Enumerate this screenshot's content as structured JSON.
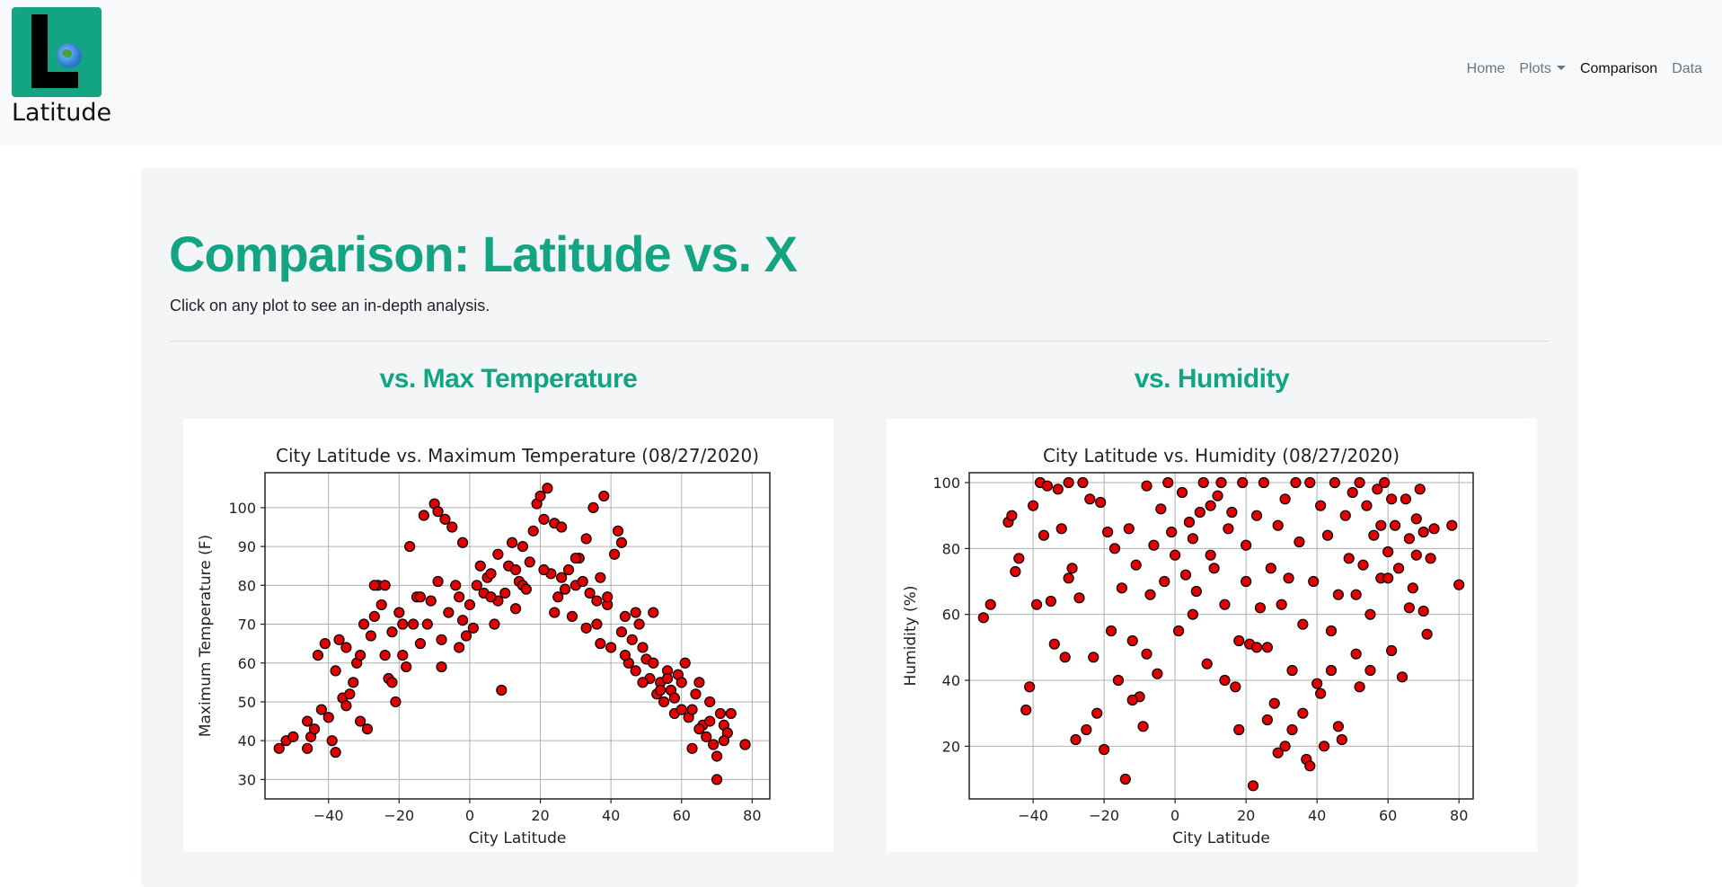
{
  "brand": {
    "name": "Latitude",
    "logo_icon": "globe-icon"
  },
  "nav": {
    "items": [
      {
        "label": "Home",
        "active": false,
        "dropdown": false
      },
      {
        "label": "Plots",
        "active": false,
        "dropdown": true
      },
      {
        "label": "Comparison",
        "active": true,
        "dropdown": false
      },
      {
        "label": "Data",
        "active": false,
        "dropdown": false
      }
    ]
  },
  "page": {
    "title": "Comparison: Latitude vs. X",
    "subtitle": "Click on any plot to see an in-depth analysis."
  },
  "colors": {
    "accent": "#13a583",
    "marker_fill": "#e00000",
    "marker_edge": "#000000",
    "grid": "#b0b0b0"
  },
  "plots": [
    {
      "heading": "vs. Max Temperature"
    },
    {
      "heading": "vs. Humidity"
    }
  ],
  "chart_data": [
    {
      "type": "scatter",
      "title": "City Latitude vs. Maximum Temperature (08/27/2020)",
      "xlabel": "City Latitude",
      "ylabel": "Maximum Temperature (F)",
      "xlim": [
        -58,
        85
      ],
      "ylim": [
        25,
        109
      ],
      "xticks": [
        -40,
        -20,
        0,
        20,
        40,
        60,
        80
      ],
      "yticks": [
        30,
        40,
        50,
        60,
        70,
        80,
        90,
        100
      ],
      "grid": true,
      "points": [
        [
          -54,
          38
        ],
        [
          -52,
          40
        ],
        [
          -50,
          41
        ],
        [
          -46,
          45
        ],
        [
          -45,
          41
        ],
        [
          -46,
          38
        ],
        [
          -43,
          62
        ],
        [
          -42,
          48
        ],
        [
          -41,
          65
        ],
        [
          -40,
          46
        ],
        [
          -38,
          58
        ],
        [
          -38,
          37
        ],
        [
          -37,
          66
        ],
        [
          -36,
          51
        ],
        [
          -35,
          49
        ],
        [
          -34,
          52
        ],
        [
          -33,
          55
        ],
        [
          -32,
          60
        ],
        [
          -31,
          45
        ],
        [
          -30,
          70
        ],
        [
          -29,
          43
        ],
        [
          -28,
          67
        ],
        [
          -27,
          72
        ],
        [
          -26,
          80
        ],
        [
          -25,
          75
        ],
        [
          -24,
          62
        ],
        [
          -23,
          56
        ],
        [
          -22,
          68
        ],
        [
          -21,
          50
        ],
        [
          -20,
          73
        ],
        [
          -19,
          62
        ],
        [
          -18,
          59
        ],
        [
          -17,
          90
        ],
        [
          -16,
          70
        ],
        [
          -15,
          77
        ],
        [
          -14,
          65
        ],
        [
          -13,
          98
        ],
        [
          -12,
          70
        ],
        [
          -11,
          76
        ],
        [
          -10,
          101
        ],
        [
          -9,
          99
        ],
        [
          -8,
          59
        ],
        [
          -7,
          97
        ],
        [
          -6,
          73
        ],
        [
          -5,
          95
        ],
        [
          -4,
          80
        ],
        [
          -3,
          77
        ],
        [
          -2,
          91
        ],
        [
          -1,
          67
        ],
        [
          0,
          75
        ],
        [
          1,
          69
        ],
        [
          2,
          80
        ],
        [
          3,
          85
        ],
        [
          4,
          78
        ],
        [
          5,
          82
        ],
        [
          6,
          83
        ],
        [
          7,
          70
        ],
        [
          8,
          76
        ],
        [
          9,
          53
        ],
        [
          10,
          78
        ],
        [
          11,
          85
        ],
        [
          12,
          91
        ],
        [
          13,
          84
        ],
        [
          14,
          81
        ],
        [
          15,
          80
        ],
        [
          16,
          79
        ],
        [
          17,
          86
        ],
        [
          18,
          94
        ],
        [
          19,
          101
        ],
        [
          20,
          103
        ],
        [
          21,
          97
        ],
        [
          22,
          105
        ],
        [
          23,
          83
        ],
        [
          24,
          96
        ],
        [
          25,
          77
        ],
        [
          26,
          82
        ],
        [
          27,
          79
        ],
        [
          28,
          84
        ],
        [
          29,
          72
        ],
        [
          30,
          80
        ],
        [
          31,
          87
        ],
        [
          32,
          81
        ],
        [
          33,
          92
        ],
        [
          34,
          78
        ],
        [
          35,
          100
        ],
        [
          36,
          70
        ],
        [
          37,
          82
        ],
        [
          38,
          103
        ],
        [
          39,
          75
        ],
        [
          40,
          64
        ],
        [
          41,
          88
        ],
        [
          42,
          94
        ],
        [
          43,
          68
        ],
        [
          44,
          72
        ],
        [
          45,
          60
        ],
        [
          46,
          66
        ],
        [
          47,
          58
        ],
        [
          48,
          70
        ],
        [
          49,
          64
        ],
        [
          50,
          61
        ],
        [
          51,
          56
        ],
        [
          52,
          73
        ],
        [
          53,
          52
        ],
        [
          54,
          55
        ],
        [
          55,
          50
        ],
        [
          56,
          58
        ],
        [
          57,
          53
        ],
        [
          58,
          47
        ],
        [
          59,
          57
        ],
        [
          60,
          48
        ],
        [
          61,
          60
        ],
        [
          62,
          46
        ],
        [
          63,
          38
        ],
        [
          64,
          52
        ],
        [
          65,
          55
        ],
        [
          66,
          44
        ],
        [
          67,
          41
        ],
        [
          68,
          50
        ],
        [
          69,
          39
        ],
        [
          70,
          36
        ],
        [
          71,
          47
        ],
        [
          72,
          44
        ],
        [
          73,
          42
        ],
        [
          74,
          47
        ],
        [
          -39,
          40
        ],
        [
          -44,
          43
        ],
        [
          -27,
          80
        ],
        [
          -24,
          80
        ],
        [
          -19,
          70
        ],
        [
          -8,
          66
        ],
        [
          -3,
          64
        ],
        [
          6,
          77
        ],
        [
          13,
          74
        ],
        [
          21,
          84
        ],
        [
          24,
          73
        ],
        [
          33,
          69
        ],
        [
          37,
          65
        ],
        [
          44,
          62
        ],
        [
          49,
          55
        ],
        [
          54,
          53
        ],
        [
          58,
          51
        ],
        [
          63,
          48
        ],
        [
          68,
          45
        ],
        [
          70,
          30
        ],
        [
          78,
          39
        ],
        [
          -35,
          64
        ],
        [
          -31,
          62
        ],
        [
          -22,
          55
        ],
        [
          -14,
          77
        ],
        [
          -9,
          81
        ],
        [
          -2,
          71
        ],
        [
          8,
          88
        ],
        [
          15,
          90
        ],
        [
          26,
          95
        ],
        [
          30,
          87
        ],
        [
          36,
          76
        ],
        [
          39,
          77
        ],
        [
          43,
          91
        ],
        [
          47,
          73
        ],
        [
          52,
          60
        ],
        [
          56,
          56
        ],
        [
          60,
          55
        ],
        [
          65,
          43
        ],
        [
          72,
          40
        ],
        [
          78,
          39
        ]
      ]
    },
    {
      "type": "scatter",
      "title": "City Latitude vs. Humidity (08/27/2020)",
      "xlabel": "City Latitude",
      "ylabel": "Humidity (%)",
      "xlim": [
        -58,
        84
      ],
      "ylim": [
        4,
        103
      ],
      "xticks": [
        -40,
        -20,
        0,
        20,
        40,
        60,
        80
      ],
      "yticks": [
        20,
        40,
        60,
        80,
        100
      ],
      "grid": true,
      "points": [
        [
          -54,
          59
        ],
        [
          -52,
          63
        ],
        [
          -47,
          88
        ],
        [
          -46,
          90
        ],
        [
          -44,
          77
        ],
        [
          -42,
          31
        ],
        [
          -41,
          38
        ],
        [
          -40,
          93
        ],
        [
          -39,
          63
        ],
        [
          -38,
          100
        ],
        [
          -37,
          84
        ],
        [
          -36,
          99
        ],
        [
          -35,
          64
        ],
        [
          -34,
          51
        ],
        [
          -33,
          98
        ],
        [
          -32,
          86
        ],
        [
          -31,
          47
        ],
        [
          -30,
          100
        ],
        [
          -29,
          74
        ],
        [
          -28,
          22
        ],
        [
          -27,
          65
        ],
        [
          -26,
          100
        ],
        [
          -25,
          25
        ],
        [
          -24,
          95
        ],
        [
          -23,
          47
        ],
        [
          -22,
          30
        ],
        [
          -21,
          94
        ],
        [
          -20,
          19
        ],
        [
          -19,
          85
        ],
        [
          -18,
          55
        ],
        [
          -17,
          80
        ],
        [
          -16,
          40
        ],
        [
          -15,
          68
        ],
        [
          -14,
          10
        ],
        [
          -13,
          86
        ],
        [
          -12,
          52
        ],
        [
          -11,
          75
        ],
        [
          -10,
          35
        ],
        [
          -9,
          26
        ],
        [
          -8,
          99
        ],
        [
          -7,
          66
        ],
        [
          -6,
          81
        ],
        [
          -5,
          42
        ],
        [
          -4,
          92
        ],
        [
          -3,
          70
        ],
        [
          -2,
          100
        ],
        [
          -1,
          85
        ],
        [
          0,
          78
        ],
        [
          1,
          55
        ],
        [
          2,
          97
        ],
        [
          3,
          72
        ],
        [
          4,
          88
        ],
        [
          5,
          83
        ],
        [
          6,
          67
        ],
        [
          7,
          91
        ],
        [
          8,
          100
        ],
        [
          9,
          45
        ],
        [
          10,
          78
        ],
        [
          11,
          74
        ],
        [
          12,
          96
        ],
        [
          13,
          100
        ],
        [
          14,
          63
        ],
        [
          15,
          86
        ],
        [
          16,
          91
        ],
        [
          17,
          38
        ],
        [
          18,
          25
        ],
        [
          19,
          100
        ],
        [
          20,
          81
        ],
        [
          21,
          51
        ],
        [
          22,
          8
        ],
        [
          23,
          90
        ],
        [
          24,
          62
        ],
        [
          25,
          100
        ],
        [
          26,
          28
        ],
        [
          27,
          74
        ],
        [
          28,
          33
        ],
        [
          29,
          87
        ],
        [
          30,
          63
        ],
        [
          31,
          95
        ],
        [
          32,
          71
        ],
        [
          33,
          43
        ],
        [
          34,
          100
        ],
        [
          35,
          82
        ],
        [
          36,
          57
        ],
        [
          37,
          16
        ],
        [
          38,
          100
        ],
        [
          39,
          70
        ],
        [
          40,
          39
        ],
        [
          41,
          93
        ],
        [
          42,
          20
        ],
        [
          43,
          84
        ],
        [
          44,
          55
        ],
        [
          45,
          100
        ],
        [
          46,
          66
        ],
        [
          47,
          22
        ],
        [
          48,
          90
        ],
        [
          49,
          77
        ],
        [
          50,
          97
        ],
        [
          51,
          48
        ],
        [
          52,
          100
        ],
        [
          53,
          75
        ],
        [
          54,
          93
        ],
        [
          55,
          60
        ],
        [
          56,
          84
        ],
        [
          57,
          98
        ],
        [
          58,
          71
        ],
        [
          59,
          100
        ],
        [
          60,
          79
        ],
        [
          61,
          49
        ],
        [
          62,
          87
        ],
        [
          63,
          74
        ],
        [
          64,
          41
        ],
        [
          65,
          95
        ],
        [
          66,
          83
        ],
        [
          67,
          68
        ],
        [
          68,
          78
        ],
        [
          69,
          98
        ],
        [
          70,
          85
        ],
        [
          71,
          54
        ],
        [
          72,
          77
        ],
        [
          73,
          86
        ],
        [
          78,
          87
        ],
        [
          80,
          69
        ],
        [
          -45,
          73
        ],
        [
          -30,
          71
        ],
        [
          -12,
          34
        ],
        [
          5,
          60
        ],
        [
          14,
          40
        ],
        [
          23,
          50
        ],
        [
          29,
          18
        ],
        [
          36,
          30
        ],
        [
          44,
          43
        ],
        [
          51,
          66
        ],
        [
          58,
          87
        ],
        [
          66,
          62
        ],
        [
          38,
          14
        ],
        [
          33,
          25
        ],
        [
          26,
          50
        ],
        [
          18,
          52
        ],
        [
          31,
          20
        ],
        [
          41,
          36
        ],
        [
          55,
          43
        ],
        [
          61,
          95
        ],
        [
          70,
          61
        ],
        [
          -8,
          48
        ],
        [
          10,
          93
        ],
        [
          20,
          70
        ],
        [
          46,
          26
        ],
        [
          52,
          38
        ],
        [
          60,
          71
        ],
        [
          68,
          89
        ]
      ]
    }
  ]
}
